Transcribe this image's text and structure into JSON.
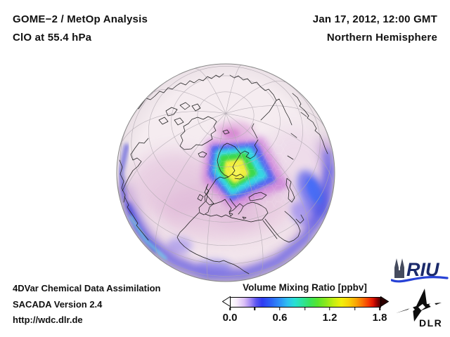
{
  "header": {
    "line1": "GOME−2 / MetOp Analysis",
    "line2": "ClO at 55.4 hPa",
    "date": "Jan 17, 2012, 12:00 GMT",
    "hemisphere": "Northern Hemisphere"
  },
  "footer": {
    "line1": "4DVar Chemical Data Assimilation",
    "line2": "SACADA Version 2.4",
    "line3": "http://wdc.dlr.de"
  },
  "colorbar": {
    "title": "Volume Mixing Ratio [ppbv]",
    "labels": [
      "0.0",
      "0.6",
      "1.2",
      "1.8"
    ],
    "min": 0.0,
    "max": 1.8,
    "tick_step": 0.3,
    "left_arrow_color": "#ffffff",
    "right_arrow_color": "#2d0000",
    "gradient": [
      [
        "0%",
        "#ffffff"
      ],
      [
        "4%",
        "#f6ecfb"
      ],
      [
        "9%",
        "#dcc0f6"
      ],
      [
        "13%",
        "#a78cf3"
      ],
      [
        "17%",
        "#5d55f0"
      ],
      [
        "21%",
        "#2f3bf2"
      ],
      [
        "27%",
        "#2c63f6"
      ],
      [
        "33%",
        "#2e93f7"
      ],
      [
        "38%",
        "#2fc0f0"
      ],
      [
        "43%",
        "#28e0d2"
      ],
      [
        "48%",
        "#2ee39b"
      ],
      [
        "53%",
        "#38e35e"
      ],
      [
        "58%",
        "#57e52f"
      ],
      [
        "64%",
        "#8fe91c"
      ],
      [
        "69%",
        "#c6ee12"
      ],
      [
        "74%",
        "#f2ef0b"
      ],
      [
        "79%",
        "#f9d107"
      ],
      [
        "84%",
        "#f9a305"
      ],
      [
        "88%",
        "#f97203"
      ],
      [
        "92%",
        "#f53b02"
      ],
      [
        "95%",
        "#e01401"
      ],
      [
        "97%",
        "#a80300"
      ],
      [
        "100%",
        "#4d0000"
      ]
    ]
  },
  "logos": {
    "riu_text": "RIU",
    "dlr_text": "DLR"
  },
  "map": {
    "projection": "orthographic",
    "view": "Northern Hemisphere",
    "base_color": "#f5ecf0",
    "hotspot_location": "Scandinavia / Baltic region",
    "hotspot_core_color": "#f2ee42",
    "hotspot_peak_value_ppbv": 1.1,
    "low_latitude_band_color": "#5b5ef0",
    "mid_latitude_wash_color": "#d9a9d2"
  }
}
